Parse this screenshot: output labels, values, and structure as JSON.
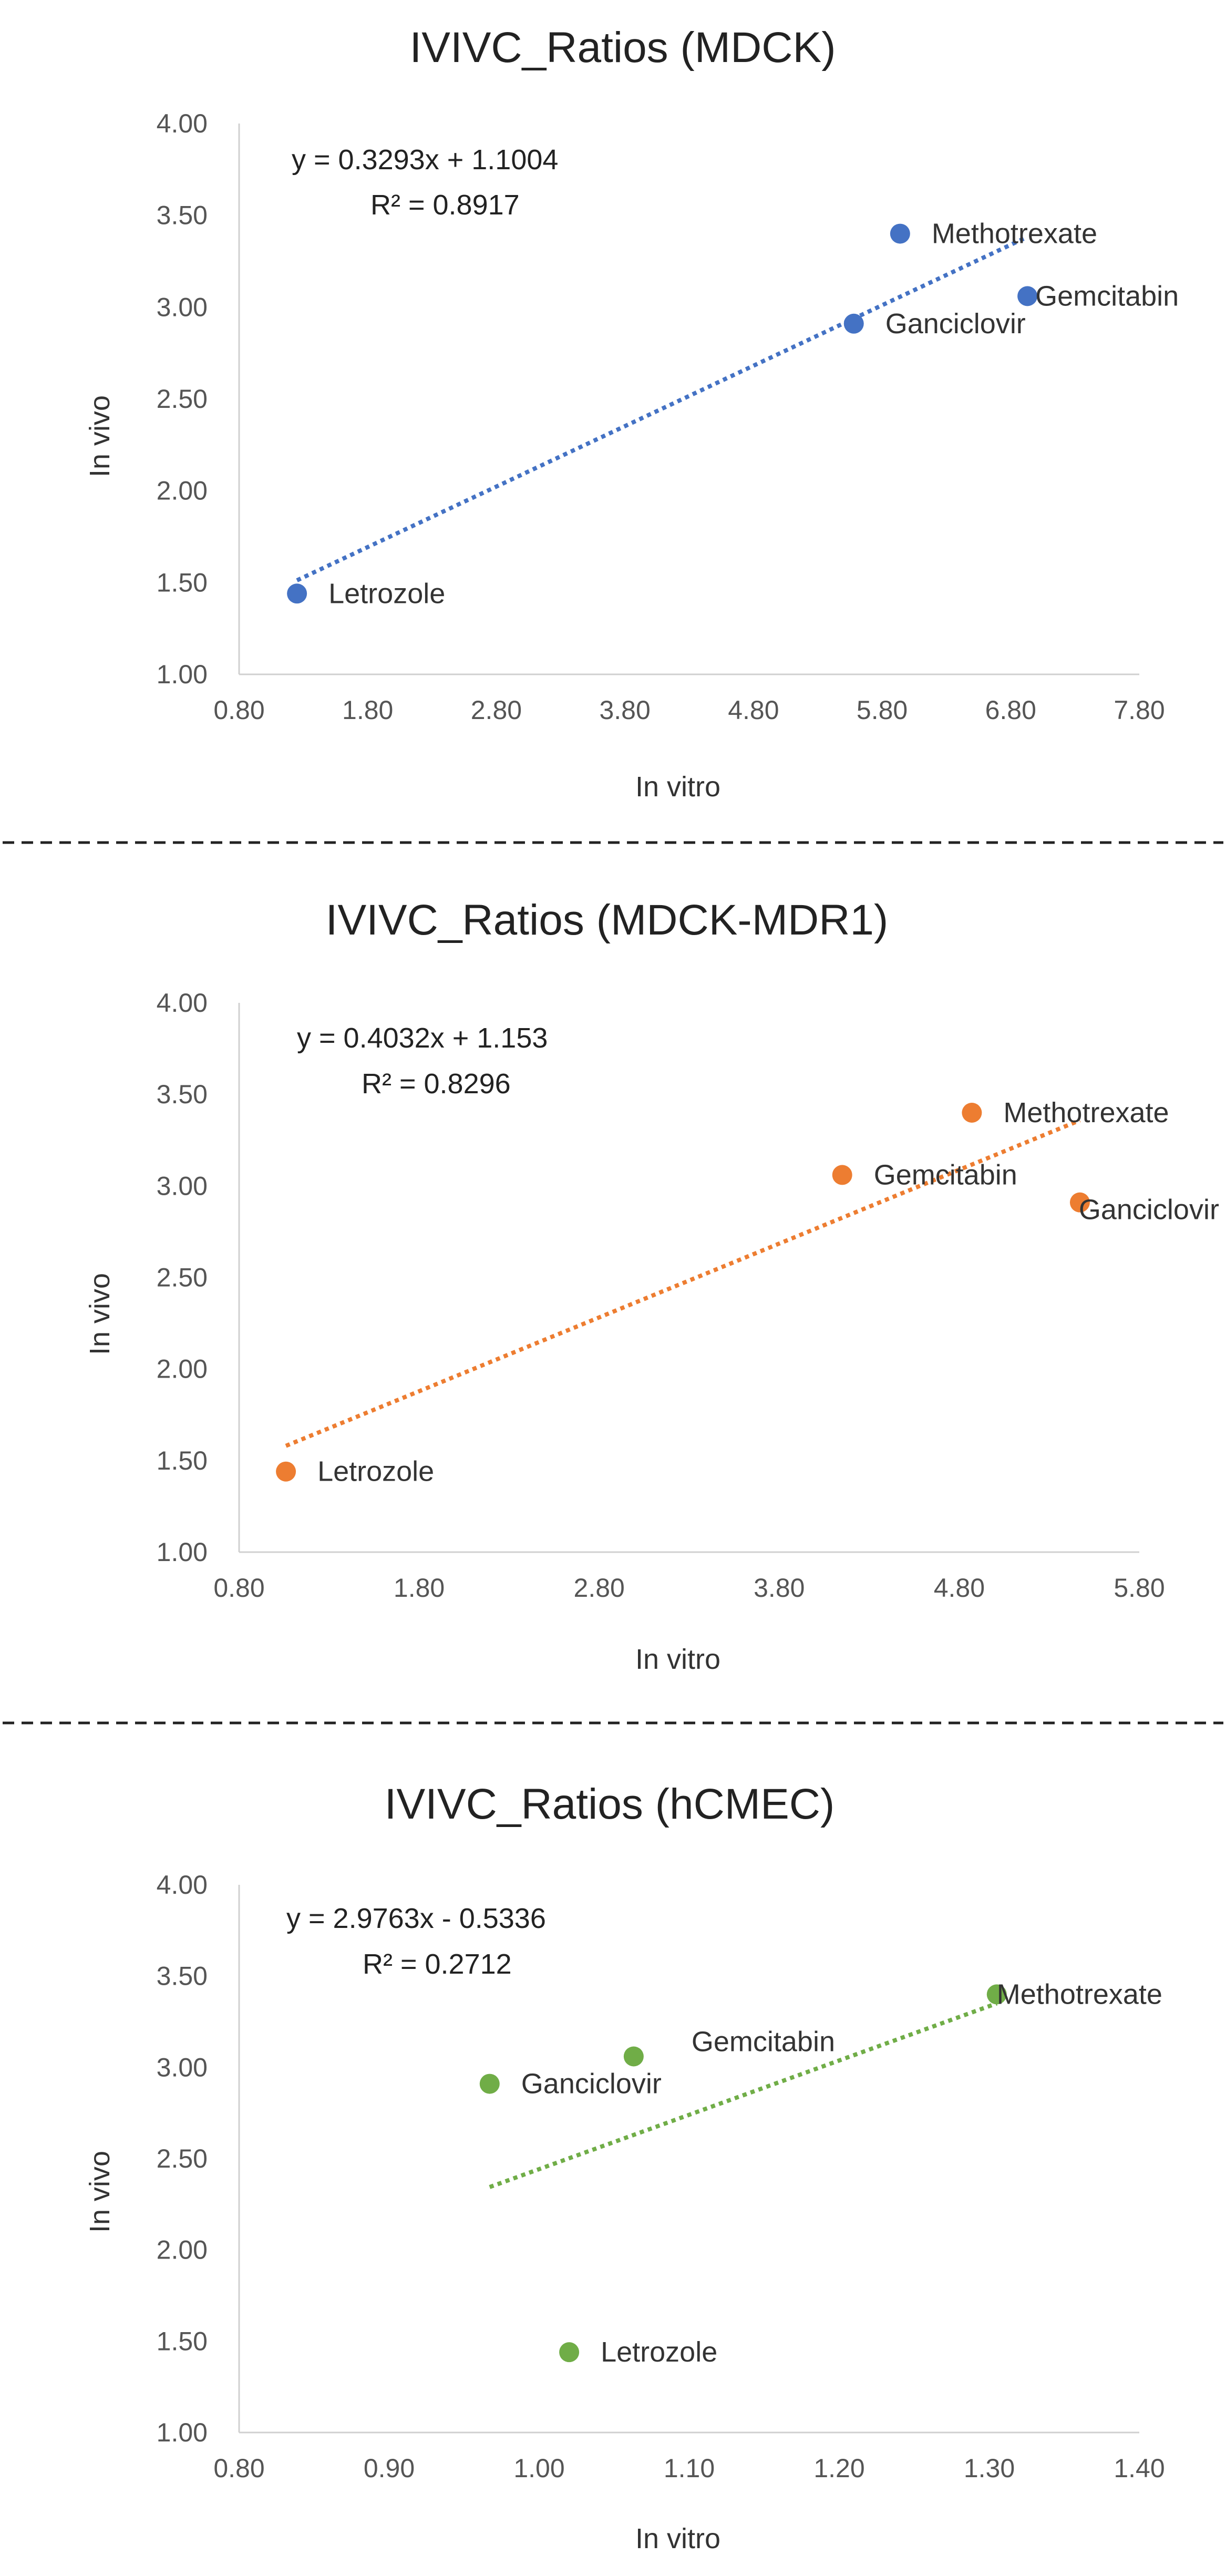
{
  "chart_data": [
    {
      "type": "scatter",
      "title": "IVIVC_Ratios (MDCK)",
      "xlabel": "In vitro",
      "ylabel": "In vivo",
      "xlim": [
        0.8,
        7.8
      ],
      "ylim": [
        1.0,
        4.0
      ],
      "xticks": [
        "0.80",
        "1.80",
        "2.80",
        "3.80",
        "4.80",
        "5.80",
        "6.80",
        "7.80"
      ],
      "yticks": [
        "1.00",
        "1.50",
        "2.00",
        "2.50",
        "3.00",
        "3.50",
        "4.00"
      ],
      "color": "#4472C4",
      "points": [
        {
          "label": "Letrozole",
          "x": 1.25,
          "y": 1.44
        },
        {
          "label": "Ganciclovir",
          "x": 5.58,
          "y": 2.91
        },
        {
          "label": "Methotrexate",
          "x": 5.94,
          "y": 3.4
        },
        {
          "label": "Gemcitabin",
          "x": 6.93,
          "y": 3.06
        }
      ],
      "trendline": {
        "equation": "y = 0.3293x + 1.1004",
        "r2": "R² = 0.8917",
        "slope": 0.3293,
        "intercept": 1.1004,
        "x_range": [
          1.25,
          6.93
        ]
      }
    },
    {
      "type": "scatter",
      "title": "IVIVC_Ratios (MDCK-MDR1)",
      "xlabel": "In vitro",
      "ylabel": "In vivo",
      "xlim": [
        0.8,
        5.8
      ],
      "ylim": [
        1.0,
        4.0
      ],
      "xticks": [
        "0.80",
        "1.80",
        "2.80",
        "3.80",
        "4.80",
        "5.80"
      ],
      "yticks": [
        "1.00",
        "1.50",
        "2.00",
        "2.50",
        "3.00",
        "3.50",
        "4.00"
      ],
      "color": "#ED7D31",
      "points": [
        {
          "label": "Letrozole",
          "x": 1.06,
          "y": 1.44
        },
        {
          "label": "Gemcitabin",
          "x": 4.15,
          "y": 3.06
        },
        {
          "label": "Methotrexate",
          "x": 4.87,
          "y": 3.4
        },
        {
          "label": "Ganciclovir",
          "x": 5.47,
          "y": 2.91
        }
      ],
      "trendline": {
        "equation": "y = 0.4032x + 1.153",
        "r2": "R² = 0.8296",
        "slope": 0.4032,
        "intercept": 1.153,
        "x_range": [
          1.06,
          5.47
        ]
      }
    },
    {
      "type": "scatter",
      "title": "IVIVC_Ratios (hCMEC)",
      "xlabel": "In vitro",
      "ylabel": "In vivo",
      "xlim": [
        0.8,
        1.4
      ],
      "ylim": [
        1.0,
        4.0
      ],
      "xticks": [
        "0.80",
        "0.90",
        "1.00",
        "1.10",
        "1.20",
        "1.30",
        "1.40"
      ],
      "yticks": [
        "1.00",
        "1.50",
        "2.00",
        "2.50",
        "3.00",
        "3.50",
        "4.00"
      ],
      "color": "#70AD47",
      "points": [
        {
          "label": "Ganciclovir",
          "x": 0.967,
          "y": 2.91
        },
        {
          "label": "Letrozole",
          "x": 1.02,
          "y": 1.44
        },
        {
          "label": "Gemcitabin",
          "x": 1.063,
          "y": 3.06
        },
        {
          "label": "Methotrexate",
          "x": 1.305,
          "y": 3.4
        }
      ],
      "trendline": {
        "equation": "y = 2.9763x - 0.5336",
        "r2": "R² = 0.2712",
        "slope": 2.9763,
        "intercept": -0.5336,
        "x_range": [
          0.967,
          1.305
        ]
      }
    }
  ]
}
